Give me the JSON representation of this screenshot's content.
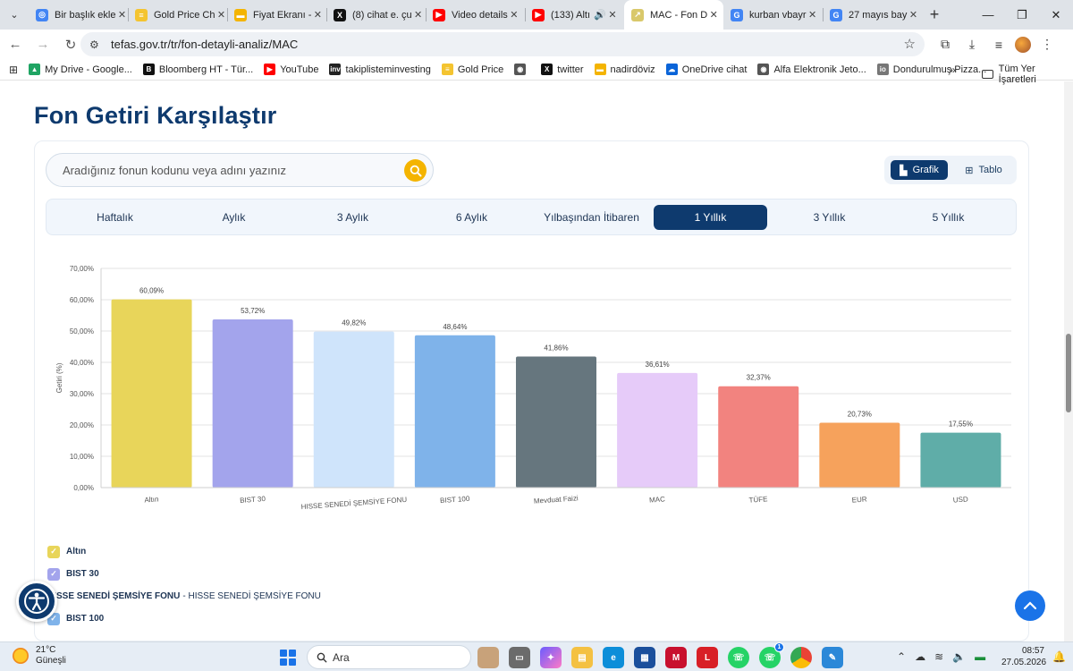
{
  "browser": {
    "tabs": [
      {
        "title": "Bir başlık ekle",
        "color": "#4285f4",
        "glyph": "◎",
        "active": false,
        "audio": false
      },
      {
        "title": "Gold Price Ch",
        "color": "#f4c430",
        "glyph": "≡",
        "active": false,
        "audio": false
      },
      {
        "title": "Fiyat Ekranı -",
        "color": "#f4b400",
        "glyph": "▬",
        "active": false,
        "audio": false
      },
      {
        "title": "(8) cihat e. çu",
        "color": "#111111",
        "glyph": "X",
        "active": false,
        "audio": false
      },
      {
        "title": "Video details",
        "color": "#ff0000",
        "glyph": "▶",
        "active": false,
        "audio": false
      },
      {
        "title": "(133) Altı",
        "color": "#ff0000",
        "glyph": "▶",
        "active": false,
        "audio": true
      },
      {
        "title": "MAC - Fon D",
        "color": "#d9c86a",
        "glyph": "↗",
        "active": true,
        "audio": false
      },
      {
        "title": "kurban vbayr",
        "color": "#4285f4",
        "glyph": "G",
        "active": false,
        "audio": false
      },
      {
        "title": "27 mayıs bay",
        "color": "#4285f4",
        "glyph": "G",
        "active": false,
        "audio": false
      }
    ],
    "url": "tefas.gov.tr/tr/fon-detayli-analiz/MAC",
    "bookmarks": [
      {
        "label": "My Drive - Google...",
        "color": "#1fa463",
        "glyph": "▲"
      },
      {
        "label": "Bloomberg HT - Tür...",
        "color": "#111111",
        "glyph": "B"
      },
      {
        "label": "YouTube",
        "color": "#ff0000",
        "glyph": "▶"
      },
      {
        "label": "takiplisteminvesting",
        "color": "#222222",
        "glyph": "inv"
      },
      {
        "label": "Gold Price",
        "color": "#f4c430",
        "glyph": "≡"
      },
      {
        "label": "",
        "color": "#555555",
        "glyph": "◉"
      },
      {
        "label": "twitter",
        "color": "#111111",
        "glyph": "X"
      },
      {
        "label": "nadirdöviz",
        "color": "#f4b400",
        "glyph": "▬"
      },
      {
        "label": "OneDrive cihat",
        "color": "#0a64d8",
        "glyph": "☁"
      },
      {
        "label": "Alfa Elektronik Jeto...",
        "color": "#555555",
        "glyph": "◉"
      },
      {
        "label": "Dondurulmuş Pizza...",
        "color": "#777777",
        "glyph": "io"
      }
    ],
    "bookmarks_more": "»",
    "all_bookmarks": "Tüm Yer İşaretleri"
  },
  "page": {
    "title": "Fon Getiri Karşılaştır",
    "search_placeholder": "Aradığınız fonun kodunu veya adını yazınız",
    "view_grafik": "Grafik",
    "view_tablo": "Tablo",
    "periods": [
      "Haftalık",
      "Aylık",
      "3 Aylık",
      "6 Aylık",
      "Yılbaşından İtibaren",
      "1 Yıllık",
      "3 Yıllık",
      "5 Yıllık"
    ],
    "active_period": "1 Yıllık"
  },
  "chart_data": {
    "type": "bar",
    "ylabel": "Getiri (%)",
    "ylim": [
      0,
      70
    ],
    "yticks": [
      "0,00%",
      "10,00%",
      "20,00%",
      "30,00%",
      "40,00%",
      "50,00%",
      "60,00%",
      "70,00%"
    ],
    "categories": [
      "Altın",
      "BIST 30",
      "HISSE SENEDİ ŞEMSİYE FONU",
      "BIST 100",
      "Mevduat Faizi",
      "MAC",
      "TÜFE",
      "EUR",
      "USD"
    ],
    "values": [
      60.09,
      53.72,
      49.82,
      48.64,
      41.86,
      36.61,
      32.37,
      20.73,
      17.55
    ],
    "value_labels": [
      "60,09%",
      "53,72%",
      "49,82%",
      "48,64%",
      "41,86%",
      "36,61%",
      "32,37%",
      "20,73%",
      "17,55%"
    ],
    "colors": [
      "#e8d55a",
      "#a3a4ec",
      "#cfe4fb",
      "#7fb3ea",
      "#66767e",
      "#e6cbf9",
      "#f2837f",
      "#f6a25c",
      "#5fada8"
    ],
    "grid": true,
    "legend_position": "bottom-left"
  },
  "legend": [
    {
      "label": "Altın",
      "sub": "",
      "color": "#e8d55a",
      "checked": true
    },
    {
      "label": "BIST 30",
      "sub": "",
      "color": "#a3a4ec",
      "checked": true
    },
    {
      "label": "HISSE SENEDİ ŞEMSİYE FONU",
      "sub": "- HISSE SENEDİ ŞEMSİYE FONU",
      "color": "",
      "checked": false
    },
    {
      "label": "BIST 100",
      "sub": "",
      "color": "#7fb3ea",
      "checked": true
    }
  ],
  "taskbar": {
    "temperature": "21°C",
    "weather": "Güneşli",
    "search_placeholder": "Ara",
    "time": "08:57",
    "date": "27.05.2026",
    "whatsapp_badge": "1"
  }
}
